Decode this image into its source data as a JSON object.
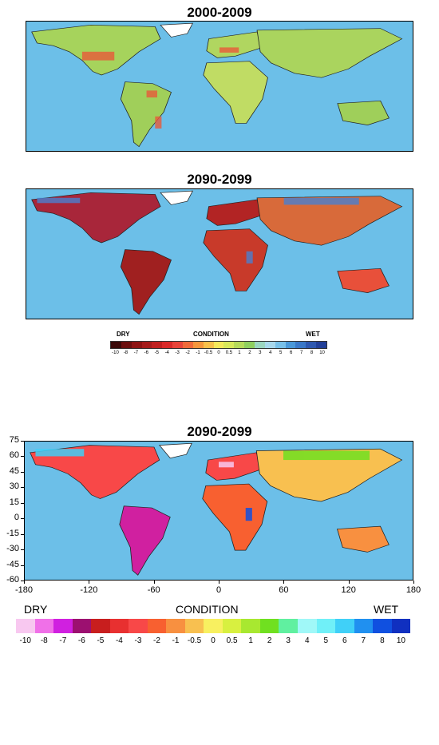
{
  "maps": [
    {
      "title": "2000-2009"
    },
    {
      "title": "2090-2099"
    },
    {
      "title": "2090-2099"
    }
  ],
  "legend_small": {
    "dry": "DRY",
    "condition": "CONDITION",
    "wet": "WET",
    "ticks": [
      "-10",
      "-8",
      "-7",
      "-6",
      "-5",
      "-4",
      "-3",
      "-2",
      "-1",
      "-0.5",
      "0",
      "0.5",
      "1",
      "2",
      "3",
      "4",
      "5",
      "6",
      "7",
      "8",
      "10"
    ],
    "colors": [
      "#3a0a0a",
      "#6b0f0f",
      "#8e1414",
      "#a61c1c",
      "#c02020",
      "#d92a2a",
      "#e8443a",
      "#f06a3a",
      "#f5963c",
      "#f8c04a",
      "#f5e85a",
      "#d8e85a",
      "#b6da5a",
      "#8fcf5e",
      "#9bd6c0",
      "#a8d8ec",
      "#78c0e8",
      "#4a98d8",
      "#3a78c8",
      "#2e58b0",
      "#223f98"
    ]
  },
  "legend_large": {
    "dry": "DRY",
    "condition": "CONDITION",
    "wet": "WET",
    "ticks": [
      "-10",
      "-8",
      "-7",
      "-6",
      "-5",
      "-4",
      "-3",
      "-2",
      "-1",
      "-0.5",
      "0",
      "0.5",
      "1",
      "2",
      "3",
      "4",
      "5",
      "6",
      "7",
      "8",
      "10"
    ],
    "colors": [
      "#f8c8f0",
      "#f070e8",
      "#d020e0",
      "#9c1070",
      "#c81e1e",
      "#e83030",
      "#f84848",
      "#f86030",
      "#f89040",
      "#f8c050",
      "#f8f060",
      "#d8f040",
      "#a8e830",
      "#70e020",
      "#60f0a0",
      "#a0f8f8",
      "#70f0f8",
      "#40d0f8",
      "#2090f0",
      "#1050e0",
      "#1030c0"
    ]
  },
  "axes": {
    "lat_ticks": [
      "75",
      "60",
      "45",
      "30",
      "15",
      "0",
      "-15",
      "-30",
      "-45",
      "-60"
    ],
    "lon_ticks": [
      "-180",
      "-120",
      "-60",
      "0",
      "60",
      "120",
      "180"
    ]
  },
  "colors": {
    "ocean": "#6cbfe8",
    "land_base": "#9ccf58"
  }
}
